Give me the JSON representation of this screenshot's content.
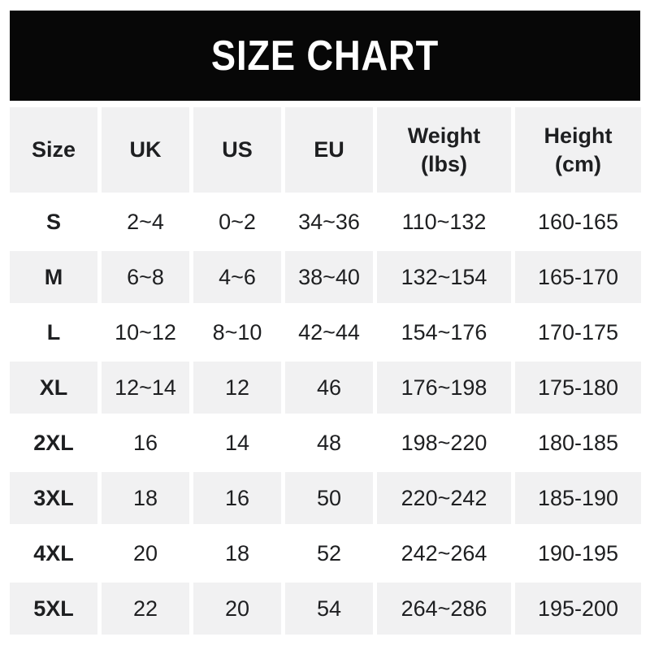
{
  "banner": {
    "title": "SIZE CHART"
  },
  "colors": {
    "banner_bg": "#070707",
    "banner_fg": "#ffffff",
    "stripe": "#f1f1f2",
    "text": "#1e1f21",
    "page_bg": "#ffffff"
  },
  "table": {
    "headers": [
      {
        "line1": "Size",
        "line2": ""
      },
      {
        "line1": "UK",
        "line2": ""
      },
      {
        "line1": "US",
        "line2": ""
      },
      {
        "line1": "EU",
        "line2": ""
      },
      {
        "line1": "Weight",
        "line2": "(lbs)"
      },
      {
        "line1": "Height",
        "line2": "(cm)"
      }
    ],
    "rows": [
      {
        "size": "S",
        "uk": "2~4",
        "us": "0~2",
        "eu": "34~36",
        "weight": "110~132",
        "height": "160-165"
      },
      {
        "size": "M",
        "uk": "6~8",
        "us": "4~6",
        "eu": "38~40",
        "weight": "132~154",
        "height": "165-170"
      },
      {
        "size": "L",
        "uk": "10~12",
        "us": "8~10",
        "eu": "42~44",
        "weight": "154~176",
        "height": "170-175"
      },
      {
        "size": "XL",
        "uk": "12~14",
        "us": "12",
        "eu": "46",
        "weight": "176~198",
        "height": "175-180"
      },
      {
        "size": "2XL",
        "uk": "16",
        "us": "14",
        "eu": "48",
        "weight": "198~220",
        "height": "180-185"
      },
      {
        "size": "3XL",
        "uk": "18",
        "us": "16",
        "eu": "50",
        "weight": "220~242",
        "height": "185-190"
      },
      {
        "size": "4XL",
        "uk": "20",
        "us": "18",
        "eu": "52",
        "weight": "242~264",
        "height": "190-195"
      },
      {
        "size": "5XL",
        "uk": "22",
        "us": "20",
        "eu": "54",
        "weight": "264~286",
        "height": "195-200"
      }
    ]
  },
  "chart_data": {
    "type": "table",
    "title": "SIZE CHART",
    "columns": [
      "Size",
      "UK",
      "US",
      "EU",
      "Weight (lbs)",
      "Height (cm)"
    ],
    "rows": [
      [
        "S",
        "2~4",
        "0~2",
        "34~36",
        "110~132",
        "160-165"
      ],
      [
        "M",
        "6~8",
        "4~6",
        "38~40",
        "132~154",
        "165-170"
      ],
      [
        "L",
        "10~12",
        "8~10",
        "42~44",
        "154~176",
        "170-175"
      ],
      [
        "XL",
        "12~14",
        "12",
        "46",
        "176~198",
        "175-180"
      ],
      [
        "2XL",
        "16",
        "14",
        "48",
        "198~220",
        "180-185"
      ],
      [
        "3XL",
        "18",
        "16",
        "50",
        "220~242",
        "185-190"
      ],
      [
        "4XL",
        "20",
        "18",
        "52",
        "242~264",
        "190-195"
      ],
      [
        "5XL",
        "22",
        "20",
        "54",
        "264~286",
        "195-200"
      ]
    ],
    "layout": {
      "header_background": "#f1f1f2",
      "row_striping": "alternate gray starting at row M",
      "grid": "white gutters between cells"
    }
  }
}
